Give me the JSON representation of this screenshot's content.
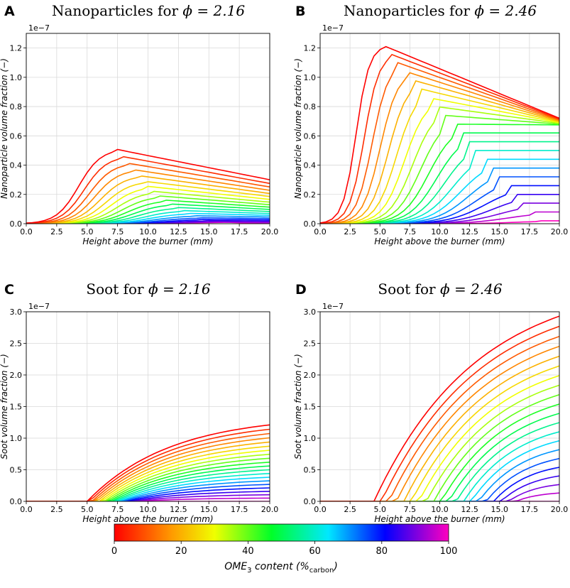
{
  "chart_data": [
    {
      "panel_letter": "A",
      "type": "line",
      "title_prefix": "Nanoparticles for ",
      "title_math": "ϕ = 2.16",
      "xlabel": "Height above the burner (mm)",
      "ylabel": "Nanoparticle volume fraction (−)",
      "offset_text": "1e−7",
      "xlim": [
        0,
        20
      ],
      "ylim": [
        0,
        1.3
      ],
      "xticks": [
        "0.0",
        "2.5",
        "5.0",
        "7.5",
        "10.0",
        "12.5",
        "15.0",
        "17.5",
        "20.0"
      ],
      "yticks": [
        "0.0",
        "0.2",
        "0.4",
        "0.6",
        "0.8",
        "1.0",
        "1.2"
      ],
      "ytick_values": [
        0,
        0.2,
        0.4,
        0.6,
        0.8,
        1.0,
        1.2
      ],
      "grid": true
    },
    {
      "panel_letter": "B",
      "type": "line",
      "title_prefix": "Nanoparticles for ",
      "title_math": "ϕ = 2.46",
      "xlabel": "Height above the burner (mm)",
      "ylabel": "Nanoparticle volume fraction (−)",
      "offset_text": "1e−7",
      "xlim": [
        0,
        20
      ],
      "ylim": [
        0,
        1.3
      ],
      "xticks": [
        "0.0",
        "2.5",
        "5.0",
        "7.5",
        "10.0",
        "12.5",
        "15.0",
        "17.5",
        "20.0"
      ],
      "yticks": [
        "0.0",
        "0.2",
        "0.4",
        "0.6",
        "0.8",
        "1.0",
        "1.2"
      ],
      "ytick_values": [
        0,
        0.2,
        0.4,
        0.6,
        0.8,
        1.0,
        1.2
      ],
      "grid": true
    },
    {
      "panel_letter": "C",
      "type": "line",
      "title_prefix": "Soot for ",
      "title_math": "ϕ = 2.16",
      "xlabel": "Height above the burner (mm)",
      "ylabel": "Soot volume fraction (−)",
      "offset_text": "1e−7",
      "xlim": [
        0,
        20
      ],
      "ylim": [
        0,
        3.0
      ],
      "xticks": [
        "0.0",
        "2.5",
        "5.0",
        "7.5",
        "10.0",
        "12.5",
        "15.0",
        "17.5",
        "20.0"
      ],
      "yticks": [
        "0.0",
        "0.5",
        "1.0",
        "1.5",
        "2.0",
        "2.5",
        "3.0"
      ],
      "ytick_values": [
        0,
        0.5,
        1.0,
        1.5,
        2.0,
        2.5,
        3.0
      ],
      "grid": true
    },
    {
      "panel_letter": "D",
      "type": "line",
      "title_prefix": "Soot for ",
      "title_math": "ϕ = 2.46",
      "xlabel": "Height above the burner (mm)",
      "ylabel": "Soot volume fraction (−)",
      "offset_text": "1e−7",
      "xlim": [
        0,
        20
      ],
      "ylim": [
        0,
        3.0
      ],
      "xticks": [
        "0.0",
        "2.5",
        "5.0",
        "7.5",
        "10.0",
        "12.5",
        "15.0",
        "17.5",
        "20.0"
      ],
      "yticks": [
        "0.0",
        "0.5",
        "1.0",
        "1.5",
        "2.0",
        "2.5",
        "3.0"
      ],
      "ytick_values": [
        0,
        0.5,
        1.0,
        1.5,
        2.0,
        2.5,
        3.0
      ],
      "grid": true
    }
  ],
  "series_info": {
    "count": 21,
    "ome3_content_percent": [
      0,
      5,
      10,
      15,
      20,
      25,
      30,
      35,
      40,
      45,
      50,
      55,
      60,
      65,
      70,
      75,
      80,
      85,
      90,
      95,
      100
    ],
    "x": [
      0,
      0.5,
      1,
      1.5,
      2,
      2.5,
      3,
      3.5,
      4,
      4.5,
      5,
      5.5,
      6,
      6.5,
      7,
      7.5,
      8,
      8.5,
      9,
      9.5,
      10,
      10.5,
      11,
      11.5,
      12,
      12.5,
      13,
      13.5,
      14,
      14.5,
      15,
      15.5,
      16,
      16.5,
      17,
      17.5,
      18,
      18.5,
      19,
      19.5,
      20
    ]
  },
  "colorbar": {
    "label_main": "OME",
    "label_sub": "3",
    "label_after": " content (%",
    "label_unit_sub": "carbon",
    "label_close": ")",
    "range": [
      0,
      100
    ],
    "ticks": [
      "0",
      "20",
      "40",
      "60",
      "80",
      "100"
    ],
    "tick_values": [
      0,
      20,
      40,
      60,
      80,
      100
    ],
    "colormap": "gist_rainbow_r"
  }
}
